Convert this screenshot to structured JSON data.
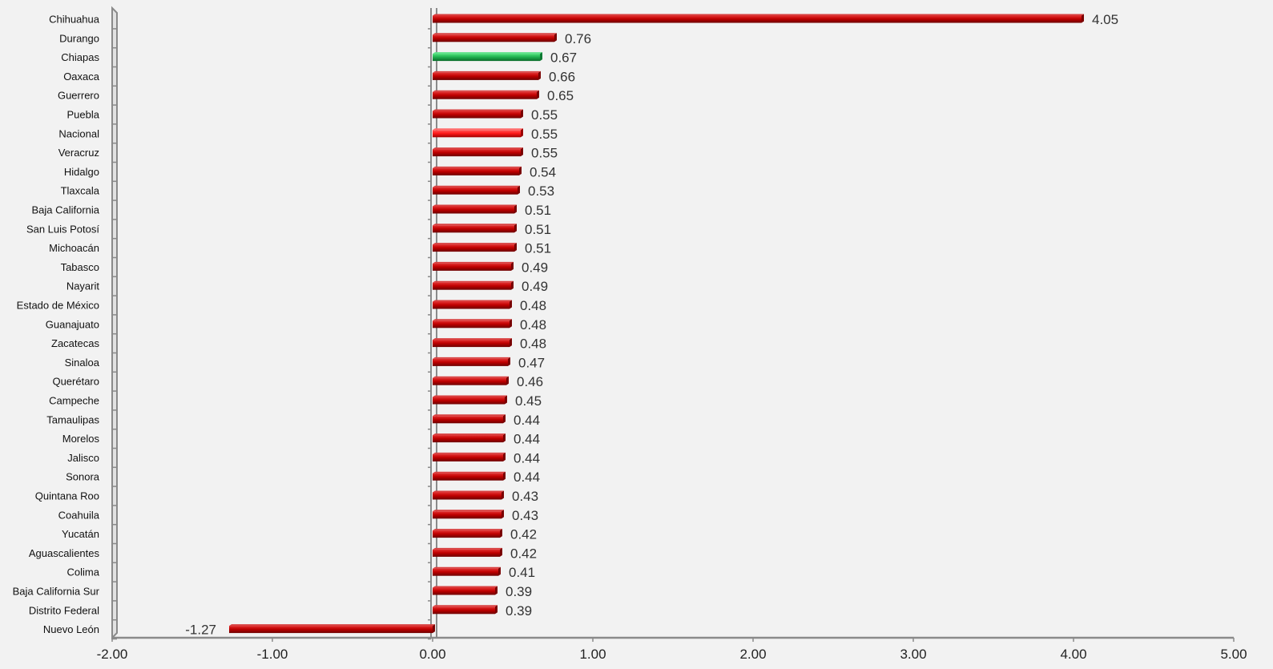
{
  "chart_data": {
    "type": "bar",
    "orientation": "horizontal",
    "categories": [
      "Chihuahua",
      "Durango",
      "Chiapas",
      "Oaxaca",
      "Guerrero",
      "Puebla",
      "Nacional",
      "Veracruz",
      "Hidalgo",
      "Tlaxcala",
      "Baja California",
      "San Luis Potosí",
      "Michoacán",
      "Tabasco",
      "Nayarit",
      "Estado de México",
      "Guanajuato",
      "Zacatecas",
      "Sinaloa",
      "Querétaro",
      "Campeche",
      "Tamaulipas",
      "Morelos",
      "Jalisco",
      "Sonora",
      "Quintana Roo",
      "Coahuila",
      "Yucatán",
      "Aguascalientes",
      "Colima",
      "Baja California Sur",
      "Distrito Federal",
      "Nuevo León"
    ],
    "values": [
      4.05,
      0.76,
      0.67,
      0.66,
      0.65,
      0.55,
      0.55,
      0.55,
      0.54,
      0.53,
      0.51,
      0.51,
      0.51,
      0.49,
      0.49,
      0.48,
      0.48,
      0.48,
      0.47,
      0.46,
      0.45,
      0.44,
      0.44,
      0.44,
      0.44,
      0.43,
      0.43,
      0.42,
      0.42,
      0.41,
      0.39,
      0.39,
      -1.27
    ],
    "value_labels": [
      "4.05",
      "0.76",
      "0.67",
      "0.66",
      "0.65",
      "0.55",
      "0.55",
      "0.55",
      "0.54",
      "0.53",
      "0.51",
      "0.51",
      "0.51",
      "0.49",
      "0.49",
      "0.48",
      "0.48",
      "0.48",
      "0.47",
      "0.46",
      "0.45",
      "0.44",
      "0.44",
      "0.44",
      "0.44",
      "0.43",
      "0.43",
      "0.42",
      "0.42",
      "0.41",
      "0.39",
      "0.39",
      "-1.27"
    ],
    "highlights": {
      "Chiapas": "#1db954",
      "Nacional": "#ff1a1a"
    },
    "bar_color": "#c00000",
    "xlim": [
      -2,
      5
    ],
    "xticks": [
      -2,
      -1,
      0,
      1,
      2,
      3,
      4,
      5
    ],
    "xtick_labels": [
      "-2.00",
      "-1.00",
      "0.00",
      "1.00",
      "2.00",
      "3.00",
      "4.00",
      "5.00"
    ],
    "title": "",
    "xlabel": "",
    "ylabel": "",
    "grid": false,
    "legend": false
  }
}
